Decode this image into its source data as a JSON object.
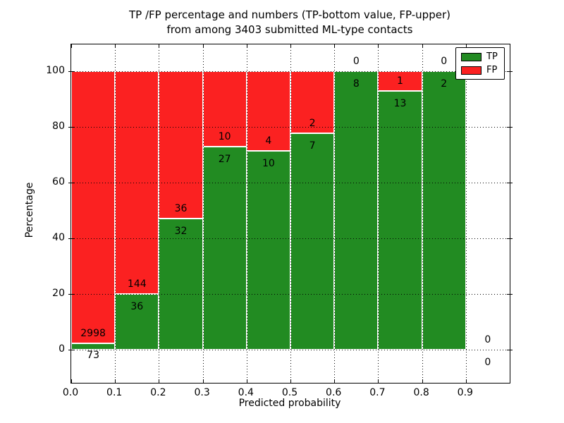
{
  "title": {
    "line1": "TP /FP percentage and numbers (TP-bottom value, FP-upper)",
    "line2": "from among 3403 submitted ML-type contacts"
  },
  "axes": {
    "xlabel": "Predicted probability",
    "ylabel": "Percentage",
    "ytick_labels": [
      "0",
      "20",
      "40",
      "60",
      "80",
      "100"
    ],
    "ytick_values": [
      0,
      20,
      40,
      60,
      80,
      100
    ],
    "xtick_labels": [
      "0.0",
      "0.1",
      "0.2",
      "0.3",
      "0.4",
      "0.5",
      "0.6",
      "0.7",
      "0.8",
      "0.9"
    ],
    "xtick_values": [
      0.0,
      0.1,
      0.2,
      0.3,
      0.4,
      0.5,
      0.6,
      0.7,
      0.8,
      0.9
    ]
  },
  "legend": {
    "items": [
      {
        "label": "TP",
        "color": "#228b22"
      },
      {
        "label": "FP",
        "color": "#fb2121"
      }
    ]
  },
  "chart_data": {
    "type": "bar",
    "stacked": true,
    "normalized_to_percent": true,
    "title": "TP /FP percentage and numbers (TP-bottom value, FP-upper) from among 3403 submitted ML-type contacts",
    "xlabel": "Predicted probability",
    "ylabel": "Percentage",
    "total_contacts": 3403,
    "bin_edges": [
      0.0,
      0.1,
      0.2,
      0.3,
      0.4,
      0.5,
      0.6,
      0.7,
      0.8,
      0.9,
      1.0
    ],
    "categories": [
      "0.0-0.1",
      "0.1-0.2",
      "0.2-0.3",
      "0.3-0.4",
      "0.4-0.5",
      "0.5-0.6",
      "0.6-0.7",
      "0.7-0.8",
      "0.8-0.9",
      "0.9-1.0"
    ],
    "series": [
      {
        "name": "TP",
        "color": "#228b22",
        "counts": [
          73,
          36,
          32,
          27,
          10,
          7,
          8,
          13,
          2,
          0
        ]
      },
      {
        "name": "FP",
        "color": "#fb2121",
        "counts": [
          2998,
          144,
          36,
          10,
          4,
          2,
          0,
          1,
          0,
          0
        ]
      }
    ],
    "tp_percent": [
      2.38,
      20.0,
      47.06,
      72.97,
      71.43,
      77.78,
      100.0,
      92.86,
      100.0,
      0.0
    ],
    "ylim_data": [
      0,
      100
    ],
    "grid": "dotted both axes, drawn above bars",
    "legend_position": "upper right",
    "bar_edge_color": "#ffffff"
  }
}
